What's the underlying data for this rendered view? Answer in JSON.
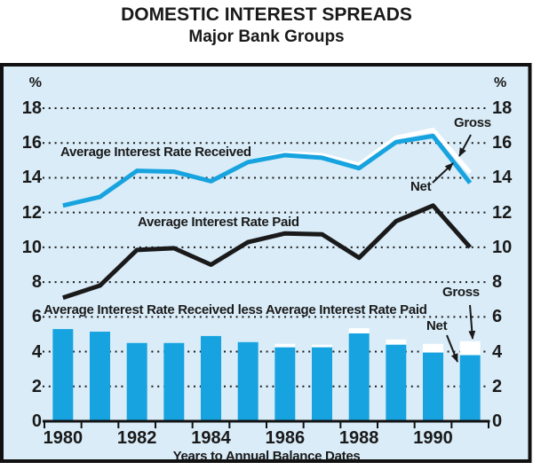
{
  "header": {
    "title": "DOMESTIC INTEREST SPREADS",
    "subtitle": "Major Bank Groups"
  },
  "colors": {
    "background": "#d9ecf8",
    "blue": "#16a3df",
    "black": "#1a1a1a",
    "white": "#ffffff",
    "border": "#111111"
  },
  "chart_data": {
    "type": "combo (lines + bars)",
    "title": "DOMESTIC INTEREST SPREADS",
    "subtitle": "Major Bank Groups",
    "xlabel": "Years to Annual Balance Dates",
    "ylabel_left": "%",
    "ylabel_right": "%",
    "ylim": [
      0,
      19
    ],
    "yticks": [
      0,
      2,
      4,
      6,
      8,
      10,
      12,
      14,
      16,
      18
    ],
    "grid": "horizontal dotted",
    "x": [
      1980,
      1981,
      1982,
      1983,
      1984,
      1985,
      1986,
      1987,
      1988,
      1989,
      1990,
      1991
    ],
    "x_labeled_years": [
      1980,
      1982,
      1984,
      1986,
      1988,
      1990
    ],
    "series": [
      {
        "key": "received_gross",
        "name": "Average Interest Rate Received (Gross)",
        "type": "line",
        "color": "#ffffff",
        "values": [
          null,
          null,
          null,
          null,
          null,
          14.9,
          15.4,
          15.3,
          14.75,
          16.3,
          16.75,
          14.3
        ]
      },
      {
        "key": "received_net",
        "name": "Average Interest Rate Received (Net)",
        "type": "line",
        "color": "#16a3df",
        "values": [
          12.4,
          12.9,
          14.4,
          14.35,
          13.8,
          14.9,
          15.3,
          15.15,
          14.55,
          16.05,
          16.4,
          13.7
        ]
      },
      {
        "key": "paid",
        "name": "Average Interest Rate Paid",
        "type": "line",
        "color": "#1a1a1a",
        "values": [
          7.1,
          7.8,
          9.85,
          9.95,
          9.0,
          10.3,
          10.8,
          10.75,
          9.4,
          11.5,
          12.4,
          10.0
        ]
      },
      {
        "key": "spread_gross",
        "name": "Average Interest Rate Received less Average Interest Rate Paid (Gross)",
        "type": "bar",
        "color": "#ffffff",
        "values": [
          5.3,
          5.15,
          4.5,
          4.5,
          4.9,
          4.55,
          4.45,
          4.4,
          5.35,
          4.7,
          4.45,
          4.6
        ]
      },
      {
        "key": "spread_net",
        "name": "Average Interest Rate Received less Average Interest Rate Paid (Net)",
        "type": "bar",
        "color": "#16a3df",
        "values": [
          5.3,
          5.15,
          4.5,
          4.5,
          4.9,
          4.55,
          4.25,
          4.25,
          5.05,
          4.4,
          3.95,
          3.8
        ]
      }
    ],
    "labels": {
      "received": "Average Interest Rate Received",
      "paid": "Average Interest Rate Paid",
      "spread": "Average Interest Rate Received less Average Interest Rate Paid",
      "gross_line": "Gross",
      "net_line": "Net",
      "gross_bar": "Gross",
      "net_bar": "Net",
      "pct_left": "%",
      "pct_right": "%"
    },
    "legend_position": "none (direct labels with arrows)"
  }
}
